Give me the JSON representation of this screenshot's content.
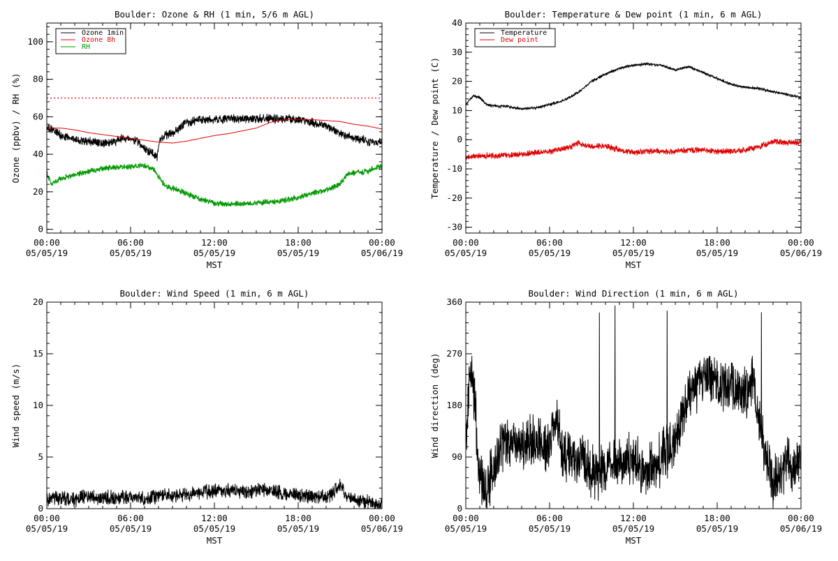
{
  "colors": {
    "black": "#000000",
    "red": "#e00000",
    "green": "#009900"
  },
  "chart_data": [
    {
      "type": "line",
      "title": "Boulder: Ozone & RH (1 min, 5/6 m AGL)",
      "xlabel": "MST",
      "ylabel": "Ozone (ppbv) / RH (%)",
      "xlim": [
        0,
        24
      ],
      "ylim": [
        -2,
        110
      ],
      "yticks": [
        0,
        20,
        40,
        60,
        80,
        100
      ],
      "xticks": [
        {
          "x": 0,
          "time": "00:00",
          "date": "05/05/19"
        },
        {
          "x": 6,
          "time": "06:00",
          "date": "05/05/19"
        },
        {
          "x": 12,
          "time": "12:00",
          "date": "05/05/19"
        },
        {
          "x": 18,
          "time": "18:00",
          "date": "05/05/19"
        },
        {
          "x": 24,
          "time": "00:00",
          "date": "05/06/19"
        }
      ],
      "grid": false,
      "legend": "top-left",
      "reference_line": {
        "y": 70,
        "color": "#e00000",
        "style": "dotted"
      },
      "series": [
        {
          "name": "Ozone 1min",
          "color": "#000000",
          "noise": 1.8,
          "x": [
            0,
            0.5,
            1,
            2,
            3,
            4,
            5,
            5.5,
            6,
            6.5,
            7,
            7.5,
            7.9,
            8.1,
            8.5,
            9,
            9.5,
            10,
            11,
            12,
            13,
            14,
            15,
            16,
            17,
            18,
            19,
            20,
            21,
            22,
            23,
            24
          ],
          "y": [
            54,
            53,
            50,
            48,
            47,
            46,
            47,
            49,
            48,
            47,
            43,
            41,
            38,
            48,
            50,
            51,
            54,
            57,
            58,
            58.5,
            59,
            59,
            59,
            59,
            59,
            58.5,
            57,
            55,
            51,
            49,
            47,
            46
          ]
        },
        {
          "name": "Ozone 8h",
          "color": "#e00000",
          "noise": 0,
          "x": [
            0,
            1,
            2,
            3,
            4,
            5,
            6,
            7,
            8,
            9,
            10,
            11,
            12,
            13,
            14,
            15,
            16,
            17,
            18,
            19,
            20,
            21,
            22,
            23,
            24
          ],
          "y": [
            54,
            54,
            53,
            51.5,
            50.5,
            49.5,
            48.5,
            47.5,
            46.5,
            46,
            47,
            48.5,
            50,
            51,
            52.5,
            54,
            57,
            58.5,
            58.5,
            58.5,
            58,
            57.5,
            56,
            55,
            53.5
          ]
        },
        {
          "name": "RH",
          "color": "#009900",
          "noise": 1.2,
          "x": [
            0,
            0.3,
            1,
            2,
            3,
            4,
            5,
            6,
            7,
            7.7,
            8,
            8.5,
            9,
            10,
            11,
            12,
            13,
            14,
            15,
            16,
            17,
            18,
            19,
            20,
            21,
            21.5,
            22,
            23,
            24
          ],
          "y": [
            30,
            24,
            27,
            29,
            31,
            32.5,
            33,
            33.5,
            34,
            32,
            28,
            23,
            22,
            19,
            16,
            14,
            13.5,
            13.5,
            14,
            14.5,
            15.5,
            17,
            19,
            21,
            24,
            29,
            30,
            31,
            34
          ]
        }
      ]
    },
    {
      "type": "line",
      "title": "Boulder: Temperature & Dew point (1 min, 6 m AGL)",
      "xlabel": "MST",
      "ylabel": "Temperature / Dew point (C)",
      "xlim": [
        0,
        24
      ],
      "ylim": [
        -32,
        40
      ],
      "yticks": [
        -30,
        -20,
        -10,
        0,
        10,
        20,
        30,
        40
      ],
      "xticks": [
        {
          "x": 0,
          "time": "00:00",
          "date": "05/05/19"
        },
        {
          "x": 6,
          "time": "06:00",
          "date": "05/05/19"
        },
        {
          "x": 12,
          "time": "12:00",
          "date": "05/05/19"
        },
        {
          "x": 18,
          "time": "18:00",
          "date": "05/05/19"
        },
        {
          "x": 24,
          "time": "00:00",
          "date": "05/06/19"
        }
      ],
      "grid": false,
      "legend": "top-left",
      "series": [
        {
          "name": "Temperature",
          "color": "#000000",
          "noise": 0.35,
          "x": [
            0,
            0.5,
            1,
            1.5,
            2,
            3,
            4,
            5,
            6,
            7,
            8,
            9,
            10,
            11,
            12,
            13,
            14,
            15,
            16,
            17,
            18,
            19,
            20,
            21,
            22,
            23,
            24
          ],
          "y": [
            12,
            15,
            14.5,
            12,
            11.5,
            11.5,
            10.5,
            11,
            12,
            13.5,
            16,
            20,
            22.5,
            24.5,
            25.5,
            26,
            25.5,
            24,
            25,
            23,
            21,
            19,
            18,
            17.5,
            16.5,
            15.5,
            14.5
          ]
        },
        {
          "name": "Dew point",
          "color": "#e00000",
          "noise": 0.8,
          "x": [
            0,
            1,
            2,
            3,
            4,
            5,
            6,
            7,
            7.5,
            8,
            8.5,
            9,
            10,
            11,
            12,
            13,
            14,
            15,
            16,
            17,
            18,
            19,
            20,
            21,
            21.5,
            22,
            23,
            24
          ],
          "y": [
            -6,
            -5.5,
            -5.5,
            -5.5,
            -5,
            -4.5,
            -4,
            -3,
            -2.5,
            -1,
            -2,
            -2.5,
            -2,
            -3.5,
            -4.5,
            -4,
            -4,
            -4,
            -3.5,
            -3.5,
            -4,
            -4,
            -3.5,
            -2.5,
            -1.5,
            -0.5,
            -1,
            -1
          ]
        }
      ]
    },
    {
      "type": "line",
      "title": "Boulder: Wind Speed (1 min, 6 m AGL)",
      "xlabel": "MST",
      "ylabel": "Wind speed (m/s)",
      "xlim": [
        0,
        24
      ],
      "ylim": [
        0,
        20
      ],
      "yticks": [
        0,
        5,
        10,
        15,
        20
      ],
      "xticks": [
        {
          "x": 0,
          "time": "00:00",
          "date": "05/05/19"
        },
        {
          "x": 6,
          "time": "06:00",
          "date": "05/05/19"
        },
        {
          "x": 12,
          "time": "12:00",
          "date": "05/05/19"
        },
        {
          "x": 18,
          "time": "18:00",
          "date": "05/05/19"
        },
        {
          "x": 24,
          "time": "00:00",
          "date": "05/06/19"
        }
      ],
      "grid": false,
      "legend": "none",
      "series": [
        {
          "name": "",
          "color": "#000000",
          "noise": 0.55,
          "floor": 0,
          "x": [
            0,
            1,
            2,
            3,
            4,
            5,
            6,
            7,
            8,
            9,
            10,
            11,
            12,
            13,
            14,
            15,
            16,
            17,
            18,
            19,
            20,
            20.5,
            21,
            21.5,
            22,
            23,
            24
          ],
          "y": [
            1.0,
            1.0,
            0.9,
            1.2,
            1.0,
            1.1,
            1.1,
            1.0,
            1.2,
            1.3,
            1.4,
            1.6,
            1.7,
            1.8,
            1.6,
            1.8,
            1.8,
            1.5,
            1.3,
            1.2,
            1.0,
            1.5,
            2.5,
            1.2,
            0.9,
            0.6,
            0.3
          ]
        }
      ]
    },
    {
      "type": "line",
      "title": "Boulder: Wind Direction (1 min, 6 m AGL)",
      "xlabel": "MST",
      "ylabel": "Wind direction (deg)",
      "xlim": [
        0,
        24
      ],
      "ylim": [
        0,
        360
      ],
      "yticks": [
        0,
        90,
        180,
        270,
        360
      ],
      "xticks": [
        {
          "x": 0,
          "time": "00:00",
          "date": "05/05/19"
        },
        {
          "x": 6,
          "time": "06:00",
          "date": "05/05/19"
        },
        {
          "x": 12,
          "time": "12:00",
          "date": "05/05/19"
        },
        {
          "x": 18,
          "time": "18:00",
          "date": "05/05/19"
        },
        {
          "x": 24,
          "time": "00:00",
          "date": "05/06/19"
        }
      ],
      "grid": false,
      "legend": "none",
      "series": [
        {
          "name": "",
          "color": "#000000",
          "noise": 35,
          "floor": 0,
          "ceil": 360,
          "wrap_spikes": true,
          "x": [
            0,
            0.3,
            0.6,
            1,
            1.5,
            2,
            3,
            4,
            5,
            6,
            6.5,
            7,
            7.5,
            8,
            8.5,
            9,
            10,
            11,
            12,
            13,
            14,
            15,
            16,
            17,
            18,
            19,
            20,
            20.5,
            21,
            21.5,
            22,
            22.5,
            23,
            23.5,
            24
          ],
          "y": [
            80,
            260,
            200,
            50,
            30,
            80,
            120,
            110,
            120,
            110,
            170,
            90,
            100,
            80,
            90,
            60,
            70,
            80,
            90,
            60,
            90,
            120,
            200,
            230,
            220,
            210,
            200,
            220,
            160,
            90,
            40,
            60,
            90,
            60,
            100
          ]
        }
      ]
    }
  ]
}
